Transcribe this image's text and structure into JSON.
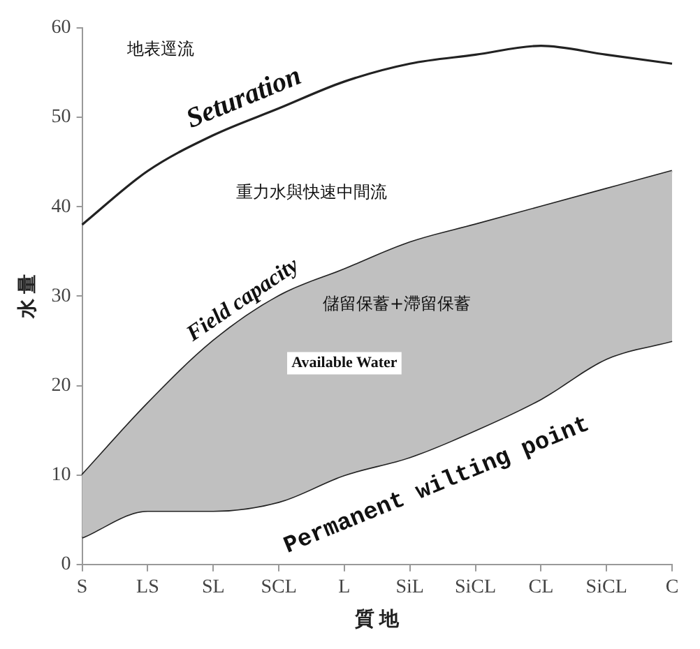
{
  "chart_data": {
    "type": "line",
    "xlabel": "質 地",
    "ylabel": "水 量",
    "categories": [
      "S",
      "LS",
      "SL",
      "SCL",
      "L",
      "SiL",
      "SiCL",
      "CL",
      "SiCL",
      "C"
    ],
    "series": [
      {
        "name": "Seturation",
        "color": "#222222",
        "values": [
          38,
          44,
          48,
          51,
          54,
          56,
          57,
          58,
          57,
          56
        ]
      },
      {
        "name": "Field capacity",
        "color": "#222222",
        "values": [
          10,
          18,
          25,
          30,
          33,
          36,
          38,
          40,
          42,
          44
        ],
        "lower": [
          3,
          6,
          6,
          7,
          10,
          12,
          15,
          18.5,
          23,
          25
        ],
        "upper": [
          10,
          18,
          25,
          30,
          33,
          36,
          38,
          40,
          42,
          44
        ]
      },
      {
        "name": "Permanent wilting point",
        "color": "#222222",
        "values": [
          3,
          6,
          6,
          7,
          10,
          12,
          15,
          18.5,
          23,
          25
        ]
      }
    ],
    "annotations": [
      "地表逕流",
      "重力水與快速中間流",
      "儲留保蓄+滯留保蓄",
      "Available Water"
    ],
    "ylim": [
      0,
      60
    ],
    "yticks": [
      0,
      10,
      20,
      30,
      40,
      50,
      60
    ],
    "grid": false,
    "legend": false,
    "marker": "none",
    "line_style": "solid"
  }
}
